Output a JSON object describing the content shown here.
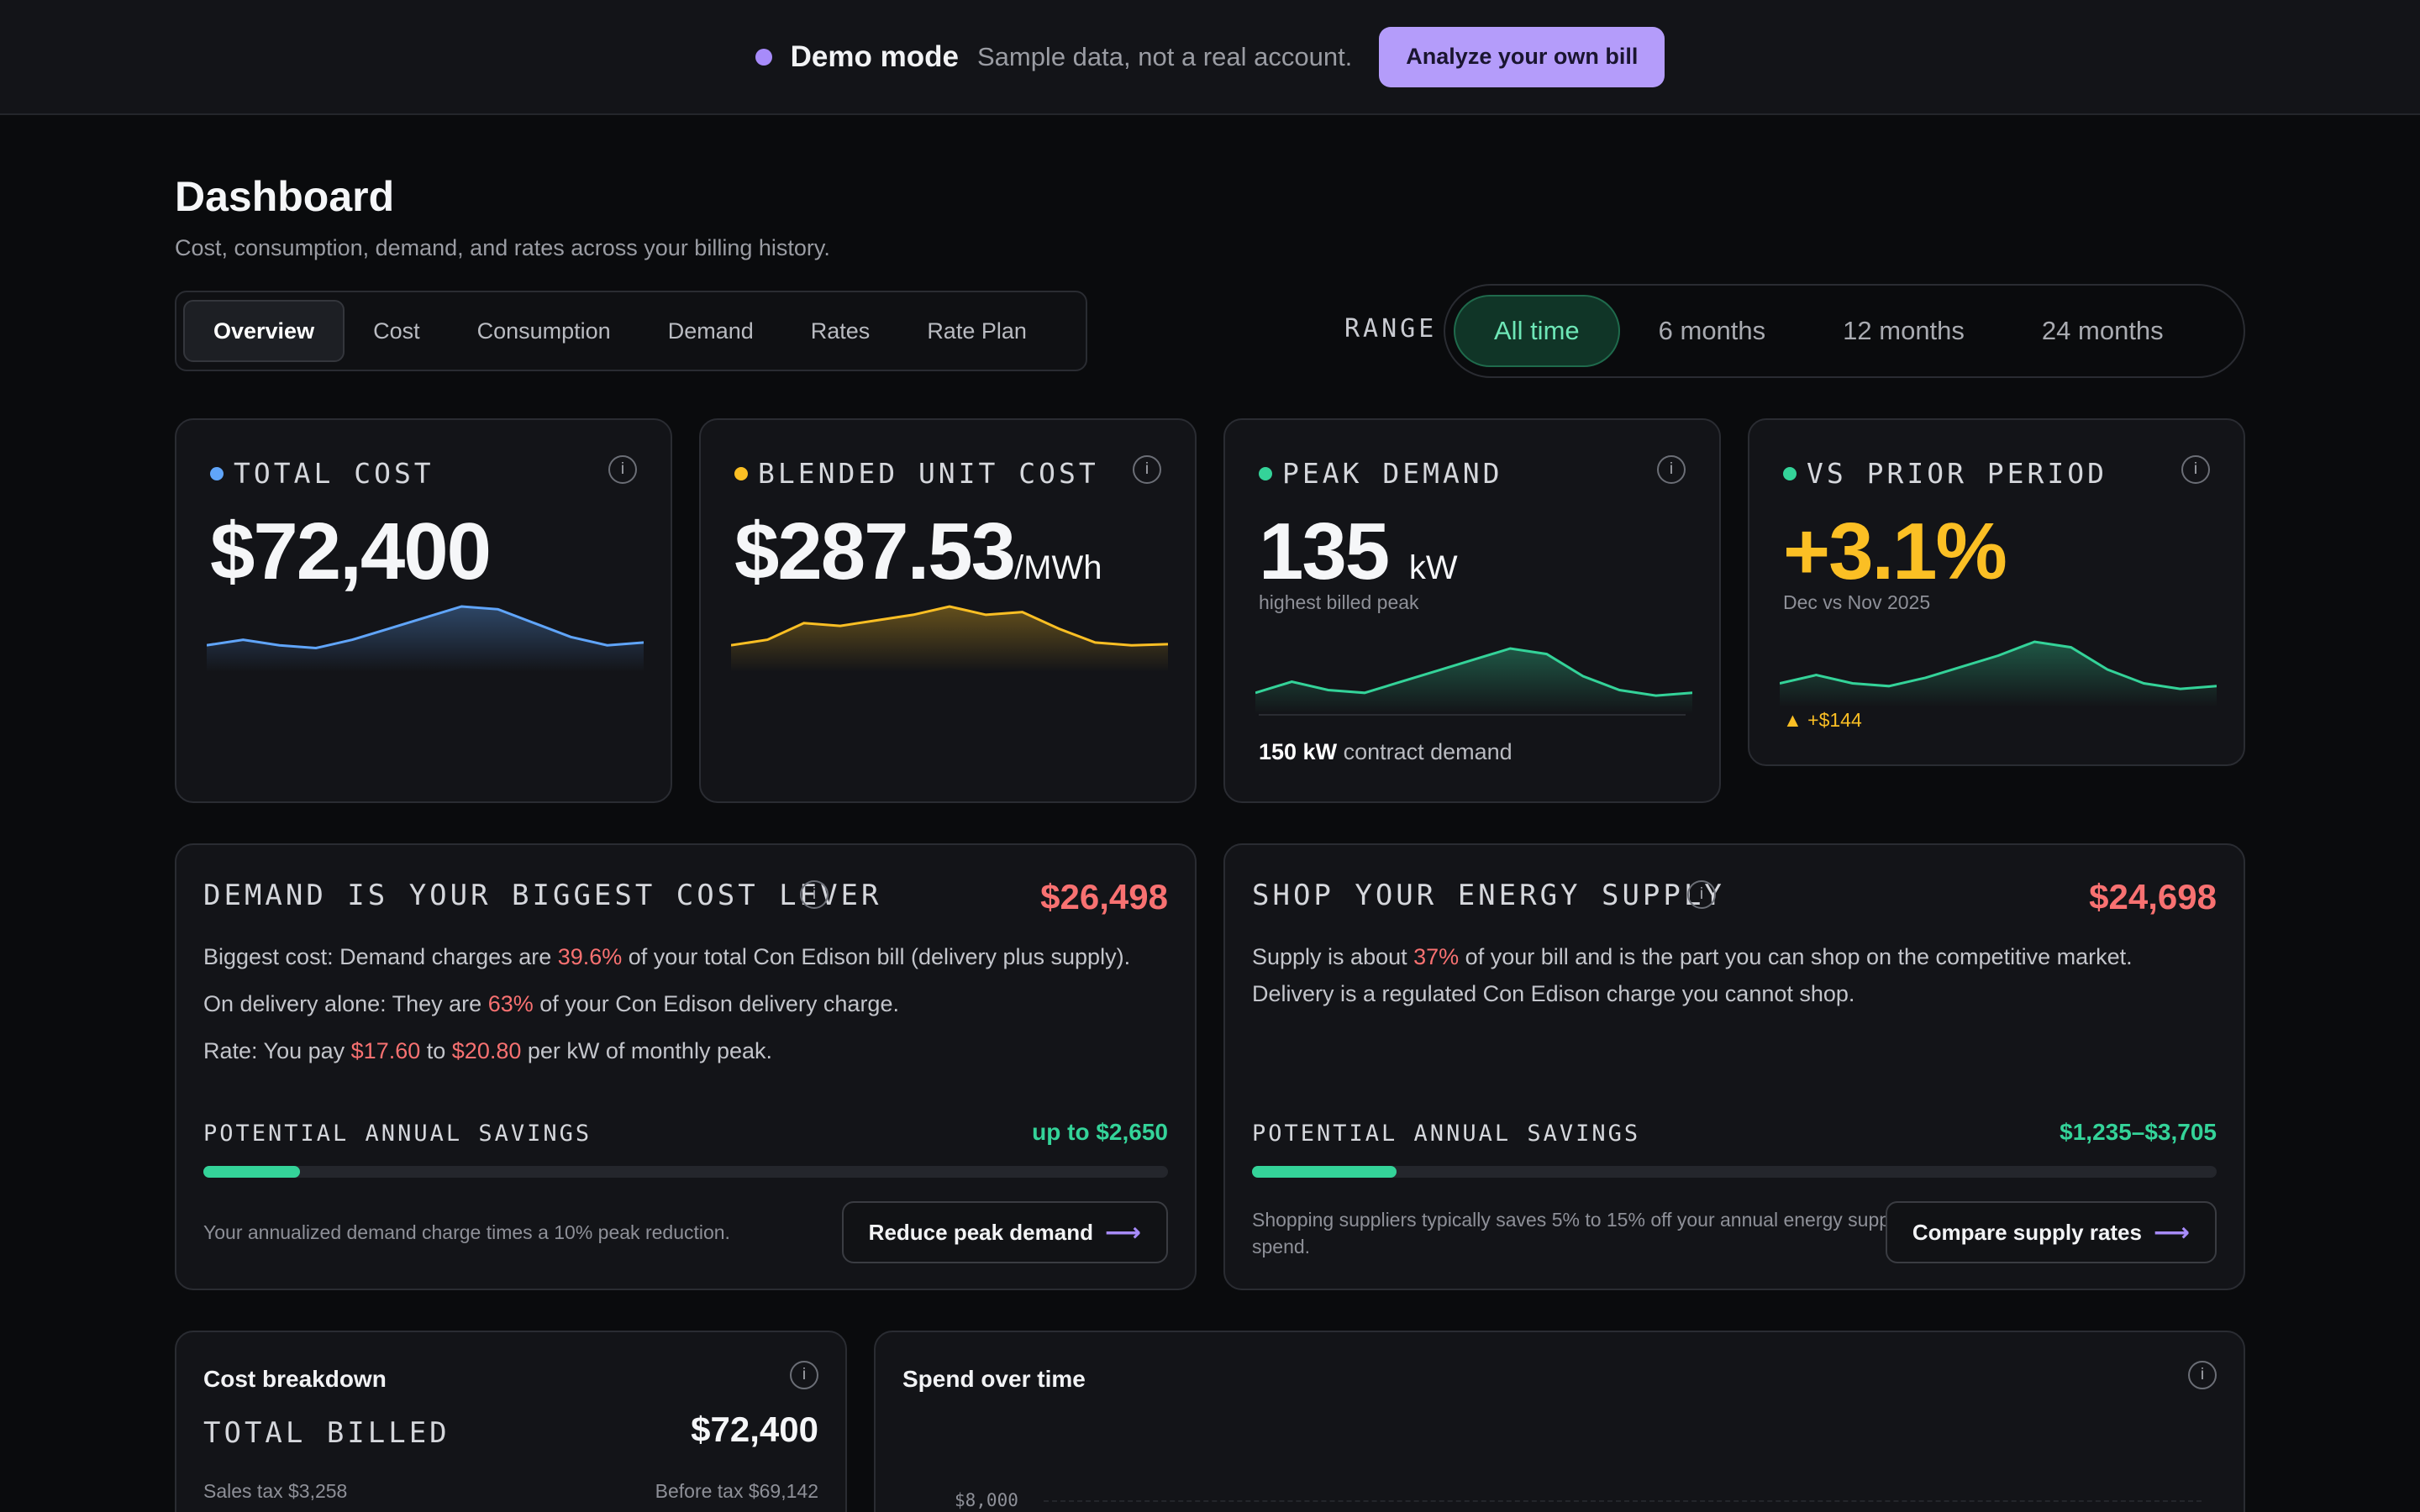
{
  "banner": {
    "title": "Demo mode",
    "subtitle": "Sample data, not a real account.",
    "cta": "Analyze your own bill"
  },
  "header": {
    "title": "Dashboard",
    "subtitle": "Cost, consumption, demand, and rates across your billing history."
  },
  "tabs": [
    {
      "label": "Overview",
      "active": true
    },
    {
      "label": "Cost"
    },
    {
      "label": "Consumption"
    },
    {
      "label": "Demand"
    },
    {
      "label": "Rates"
    },
    {
      "label": "Rate Plan"
    }
  ],
  "range": {
    "label": "RANGE",
    "options": [
      {
        "label": "All time",
        "active": true
      },
      {
        "label": "6 months"
      },
      {
        "label": "12 months"
      },
      {
        "label": "24 months"
      }
    ]
  },
  "kpis": [
    {
      "label": "TOTAL COST",
      "value": "$72,400",
      "unit": "",
      "color": "#60a5fa",
      "spark": [
        0.3,
        0.4,
        0.3,
        0.25,
        0.4,
        0.6,
        0.8,
        1.0,
        0.95,
        0.7,
        0.45,
        0.3,
        0.35
      ]
    },
    {
      "label": "BLENDED UNIT COST",
      "value": "$287.53",
      "unit": "/MWh",
      "color": "#fbbf24",
      "spark": [
        0.3,
        0.4,
        0.7,
        0.65,
        0.75,
        0.85,
        1.0,
        0.85,
        0.9,
        0.6,
        0.35,
        0.3,
        0.32
      ]
    },
    {
      "label": "PEAK DEMAND",
      "value": "135",
      "unit": "kW",
      "color": "#34d399",
      "note": "highest billed peak",
      "contract_value": "150 kW",
      "contract_label": "contract demand",
      "spark": [
        0.2,
        0.4,
        0.25,
        0.2,
        0.4,
        0.6,
        0.8,
        1.0,
        0.9,
        0.5,
        0.25,
        0.15,
        0.2
      ]
    },
    {
      "label": "VS PRIOR PERIOD",
      "value": "+3.1%",
      "unit": "",
      "color": "#34d399",
      "note": "Dec vs Nov 2025",
      "delta": "+$144",
      "spark": [
        0.25,
        0.4,
        0.25,
        0.2,
        0.35,
        0.55,
        0.75,
        1.0,
        0.9,
        0.5,
        0.25,
        0.15,
        0.2
      ]
    }
  ],
  "levers": [
    {
      "title": "DEMAND IS YOUR BIGGEST COST LEVER",
      "amount": "$26,498",
      "lines": [
        {
          "pre": "Biggest cost: Demand charges are ",
          "hl": "39.6%",
          "mid": " of your total Con Edison bill (delivery plus supply).",
          "hl2": "",
          "post": ""
        },
        {
          "pre": "On delivery alone: They are ",
          "hl": "63%",
          "mid": " of your Con Edison delivery charge.",
          "hl2": "",
          "post": ""
        },
        {
          "pre": "Rate: You pay ",
          "hl": "$17.60",
          "mid": " to ",
          "hl2": "$20.80",
          "post": " per kW of monthly peak."
        }
      ],
      "savings_label": "POTENTIAL ANNUAL SAVINGS",
      "savings_value": "up to $2,650",
      "savings_fraction": 0.1,
      "footnote": "Your annualized demand charge times a 10% peak reduction.",
      "button": "Reduce peak demand"
    },
    {
      "title": "SHOP YOUR ENERGY SUPPLY",
      "amount": "$24,698",
      "lines": [
        {
          "pre": "Supply is about ",
          "hl": "37%",
          "mid": " of your bill and is the part you can shop on the competitive market.",
          "hl2": "",
          "post": ""
        },
        {
          "pre": "Delivery is a regulated Con Edison charge you cannot shop.",
          "hl": "",
          "mid": "",
          "hl2": "",
          "post": ""
        }
      ],
      "savings_label": "POTENTIAL ANNUAL SAVINGS",
      "savings_value": "$1,235–$3,705",
      "savings_fraction": 0.15,
      "footnote": "Shopping suppliers typically saves 5% to 15% off your annual energy supply spend.",
      "button": "Compare supply rates"
    }
  ],
  "breakdown": {
    "title": "Cost breakdown",
    "total_label": "TOTAL BILLED",
    "total_value": "$72,400",
    "tax": "Sales tax $3,258",
    "before_tax": "Before tax $69,142"
  },
  "spend": {
    "title": "Spend over time",
    "y_tick": "$8,000"
  }
}
